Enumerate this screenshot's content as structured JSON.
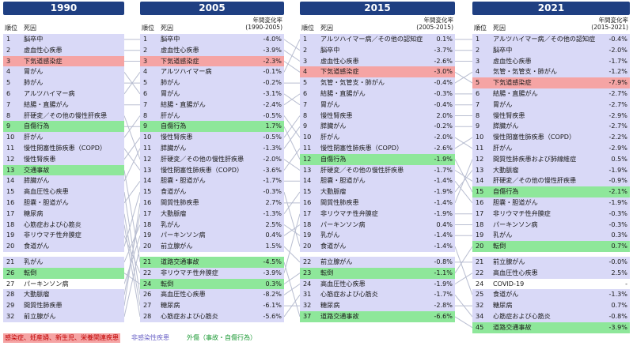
{
  "chart_data": {
    "type": "table",
    "legend": [
      {
        "label": "感染症、妊産婦、新生児、栄養関連疾患",
        "color": "#f5a4a4",
        "text_color": "#c00000"
      },
      {
        "label": "非感染性疾患",
        "color": "#d9d9f7",
        "text_color": "#6b63c7"
      },
      {
        "label": "外傷（事故・自傷行為）",
        "color": "#8ee79a",
        "text_color": "#1c9a35"
      }
    ],
    "columns": [
      {
        "year": "1990",
        "rank_header": "順位",
        "cause_header": "死因",
        "growth_header": "",
        "top": [
          {
            "rank": "1",
            "cause": "脳卒中",
            "growth": "",
            "cat": "nc"
          },
          {
            "rank": "2",
            "cause": "虚血性心疾患",
            "growth": "",
            "cat": "nc"
          },
          {
            "rank": "3",
            "cause": "下気道感染症",
            "growth": "",
            "cat": "inf"
          },
          {
            "rank": "4",
            "cause": "胃がん",
            "growth": "",
            "cat": "nc"
          },
          {
            "rank": "5",
            "cause": "肺がん",
            "growth": "",
            "cat": "nc"
          },
          {
            "rank": "6",
            "cause": "アルツハイマー病",
            "growth": "",
            "cat": "nc"
          },
          {
            "rank": "7",
            "cause": "結腸・直腸がん",
            "growth": "",
            "cat": "nc"
          },
          {
            "rank": "8",
            "cause": "肝硬変／その他の慢性肝疾患",
            "growth": "",
            "cat": "nc"
          },
          {
            "rank": "9",
            "cause": "自傷行為",
            "growth": "",
            "cat": "inj"
          },
          {
            "rank": "10",
            "cause": "肝がん",
            "growth": "",
            "cat": "nc"
          },
          {
            "rank": "11",
            "cause": "慢性閉塞性肺疾患（COPD）",
            "growth": "",
            "cat": "nc"
          },
          {
            "rank": "12",
            "cause": "慢性腎疾患",
            "growth": "",
            "cat": "nc"
          },
          {
            "rank": "13",
            "cause": "交通事故",
            "growth": "",
            "cat": "inj"
          },
          {
            "rank": "14",
            "cause": "膵臓がん",
            "growth": "",
            "cat": "nc"
          },
          {
            "rank": "15",
            "cause": "高血圧性心疾患",
            "growth": "",
            "cat": "nc"
          },
          {
            "rank": "16",
            "cause": "胆嚢・胆道がん",
            "growth": "",
            "cat": "nc"
          },
          {
            "rank": "17",
            "cause": "糖尿病",
            "growth": "",
            "cat": "nc"
          },
          {
            "rank": "18",
            "cause": "心筋症および心筋炎",
            "growth": "",
            "cat": "nc"
          },
          {
            "rank": "19",
            "cause": "非リウマチ性弁膜症",
            "growth": "",
            "cat": "nc"
          },
          {
            "rank": "20",
            "cause": "食道がん",
            "growth": "",
            "cat": "nc"
          }
        ],
        "bottom": [
          {
            "rank": "21",
            "cause": "乳がん",
            "growth": "",
            "cat": "nc"
          },
          {
            "rank": "26",
            "cause": "転倒",
            "growth": "",
            "cat": "inj"
          },
          {
            "rank": "27",
            "cause": "パーキンソン病",
            "growth": "",
            "cat": "other"
          },
          {
            "rank": "28",
            "cause": "大動脈瘤",
            "growth": "",
            "cat": "nc"
          },
          {
            "rank": "29",
            "cause": "間質性肺疾患",
            "growth": "",
            "cat": "nc"
          },
          {
            "rank": "32",
            "cause": "前立腺がん",
            "growth": "",
            "cat": "nc"
          }
        ]
      },
      {
        "year": "2005",
        "rank_header": "順位",
        "cause_header": "死因",
        "growth_header": "年間変化率\n(1990-2005)",
        "top": [
          {
            "rank": "1",
            "cause": "脳卒中",
            "growth": "-4.0%",
            "cat": "nc"
          },
          {
            "rank": "2",
            "cause": "虚血性心疾患",
            "growth": "-3.9%",
            "cat": "nc"
          },
          {
            "rank": "3",
            "cause": "下気道感染症",
            "growth": "-2.3%",
            "cat": "inf"
          },
          {
            "rank": "4",
            "cause": "アルツハイマー病",
            "growth": "-0.1%",
            "cat": "nc"
          },
          {
            "rank": "5",
            "cause": "肺がん",
            "growth": "-0.2%",
            "cat": "nc"
          },
          {
            "rank": "6",
            "cause": "胃がん",
            "growth": "-3.1%",
            "cat": "nc"
          },
          {
            "rank": "7",
            "cause": "結腸・直腸がん",
            "growth": "-2.4%",
            "cat": "nc"
          },
          {
            "rank": "8",
            "cause": "肝がん",
            "growth": "-0.5%",
            "cat": "nc"
          },
          {
            "rank": "9",
            "cause": "自傷行為",
            "growth": "1.7%",
            "cat": "inj"
          },
          {
            "rank": "10",
            "cause": "慢性腎疾患",
            "growth": "-0.5%",
            "cat": "nc"
          },
          {
            "rank": "11",
            "cause": "膵臓がん",
            "growth": "-1.3%",
            "cat": "nc"
          },
          {
            "rank": "12",
            "cause": "肝硬変／その他の慢性肝疾患",
            "growth": "-2.0%",
            "cat": "nc"
          },
          {
            "rank": "13",
            "cause": "慢性閉塞性肺疾患（COPD）",
            "growth": "-3.6%",
            "cat": "nc"
          },
          {
            "rank": "14",
            "cause": "胆嚢・胆道がん",
            "growth": "-1.7%",
            "cat": "nc"
          },
          {
            "rank": "15",
            "cause": "食道がん",
            "growth": "-0.3%",
            "cat": "nc"
          },
          {
            "rank": "16",
            "cause": "間質性肺疾患",
            "growth": "2.7%",
            "cat": "nc"
          },
          {
            "rank": "17",
            "cause": "大動脈瘤",
            "growth": "-1.3%",
            "cat": "nc"
          },
          {
            "rank": "18",
            "cause": "乳がん",
            "growth": "2.5%",
            "cat": "nc"
          },
          {
            "rank": "19",
            "cause": "パーキンソン病",
            "growth": "0.4%",
            "cat": "nc"
          },
          {
            "rank": "20",
            "cause": "前立腺がん",
            "growth": "1.5%",
            "cat": "nc"
          }
        ],
        "bottom": [
          {
            "rank": "21",
            "cause": "道路交通事故",
            "growth": "-4.5%",
            "cat": "inj"
          },
          {
            "rank": "22",
            "cause": "非リウマチ性弁膜症",
            "growth": "-3.9%",
            "cat": "nc"
          },
          {
            "rank": "24",
            "cause": "転倒",
            "growth": "0.3%",
            "cat": "inj"
          },
          {
            "rank": "26",
            "cause": "高血圧性心疾患",
            "growth": "-8.2%",
            "cat": "nc"
          },
          {
            "rank": "27",
            "cause": "糖尿病",
            "growth": "-6.1%",
            "cat": "nc"
          },
          {
            "rank": "28",
            "cause": "心筋症および心筋炎",
            "growth": "-5.6%",
            "cat": "nc"
          }
        ]
      },
      {
        "year": "2015",
        "rank_header": "順位",
        "cause_header": "死因",
        "growth_header": "年間変化率\n(2005-2015)",
        "top": [
          {
            "rank": "1",
            "cause": "アルツハイマー病／その他の認知症",
            "growth": "0.1%",
            "cat": "nc"
          },
          {
            "rank": "2",
            "cause": "脳卒中",
            "growth": "-3.7%",
            "cat": "nc"
          },
          {
            "rank": "3",
            "cause": "虚血性心疾患",
            "growth": "-2.6%",
            "cat": "nc"
          },
          {
            "rank": "4",
            "cause": "下気道感染症",
            "growth": "-3.0%",
            "cat": "inf"
          },
          {
            "rank": "5",
            "cause": "気管・気管支・肺がん",
            "growth": "-0.4%",
            "cat": "nc"
          },
          {
            "rank": "6",
            "cause": "結腸・直腸がん",
            "growth": "-0.3%",
            "cat": "nc"
          },
          {
            "rank": "7",
            "cause": "胃がん",
            "growth": "-0.4%",
            "cat": "nc"
          },
          {
            "rank": "8",
            "cause": "慢性腎疾患",
            "growth": "2.0%",
            "cat": "nc"
          },
          {
            "rank": "9",
            "cause": "膵臓がん",
            "growth": "-0.2%",
            "cat": "nc"
          },
          {
            "rank": "10",
            "cause": "肝がん",
            "growth": "-2.0%",
            "cat": "nc"
          },
          {
            "rank": "11",
            "cause": "慢性閉塞性肺疾患（COPD）",
            "growth": "-2.6%",
            "cat": "nc"
          },
          {
            "rank": "12",
            "cause": "自傷行為",
            "growth": "-1.9%",
            "cat": "inj"
          },
          {
            "rank": "13",
            "cause": "肝硬変／その他の慢性肝疾患",
            "growth": "-1.7%",
            "cat": "nc"
          },
          {
            "rank": "14",
            "cause": "胆嚢・胆道がん",
            "growth": "-1.4%",
            "cat": "nc"
          },
          {
            "rank": "15",
            "cause": "大動脈瘤",
            "growth": "-1.9%",
            "cat": "nc"
          },
          {
            "rank": "16",
            "cause": "間質性肺疾患",
            "growth": "-1.4%",
            "cat": "nc"
          },
          {
            "rank": "17",
            "cause": "非リウマチ性弁膜症",
            "growth": "-1.9%",
            "cat": "nc"
          },
          {
            "rank": "18",
            "cause": "パーキンソン病",
            "growth": "0.4%",
            "cat": "nc"
          },
          {
            "rank": "19",
            "cause": "乳がん",
            "growth": "-1.4%",
            "cat": "nc"
          },
          {
            "rank": "20",
            "cause": "食道がん",
            "growth": "-1.4%",
            "cat": "nc"
          }
        ],
        "bottom": [
          {
            "rank": "22",
            "cause": "前立腺がん",
            "growth": "-0.8%",
            "cat": "nc"
          },
          {
            "rank": "23",
            "cause": "転倒",
            "growth": "-1.1%",
            "cat": "inj"
          },
          {
            "rank": "24",
            "cause": "高血圧性心疾患",
            "growth": "-1.9%",
            "cat": "nc"
          },
          {
            "rank": "31",
            "cause": "心筋症および心筋炎",
            "growth": "-1.7%",
            "cat": "nc"
          },
          {
            "rank": "32",
            "cause": "糖尿病",
            "growth": "-2.8%",
            "cat": "nc"
          },
          {
            "rank": "37",
            "cause": "道路交通事故",
            "growth": "-6.6%",
            "cat": "inj"
          }
        ]
      },
      {
        "year": "2021",
        "rank_header": "順位",
        "cause_header": "死因",
        "growth_header": "年間変化率\n(2015-2021)",
        "top": [
          {
            "rank": "1",
            "cause": "アルツハイマー病／その他の認知症",
            "growth": "-0.4%",
            "cat": "nc"
          },
          {
            "rank": "2",
            "cause": "脳卒中",
            "growth": "-2.0%",
            "cat": "nc"
          },
          {
            "rank": "3",
            "cause": "虚血性心疾患",
            "growth": "-1.7%",
            "cat": "nc"
          },
          {
            "rank": "4",
            "cause": "気管・気管支・肺がん",
            "growth": "-1.2%",
            "cat": "nc"
          },
          {
            "rank": "5",
            "cause": "下気道感染症",
            "growth": "-7.9%",
            "cat": "inf"
          },
          {
            "rank": "6",
            "cause": "結腸・直腸がん",
            "growth": "-2.7%",
            "cat": "nc"
          },
          {
            "rank": "7",
            "cause": "胃がん",
            "growth": "-2.7%",
            "cat": "nc"
          },
          {
            "rank": "8",
            "cause": "慢性腎疾患",
            "growth": "-2.9%",
            "cat": "nc"
          },
          {
            "rank": "9",
            "cause": "膵臓がん",
            "growth": "-2.7%",
            "cat": "nc"
          },
          {
            "rank": "10",
            "cause": "慢性閉塞性肺疾患（COPD）",
            "growth": "-2.2%",
            "cat": "nc"
          },
          {
            "rank": "11",
            "cause": "肝がん",
            "growth": "-2.9%",
            "cat": "nc"
          },
          {
            "rank": "12",
            "cause": "間質性肺疾患および肺線維症",
            "growth": "0.5%",
            "cat": "nc"
          },
          {
            "rank": "13",
            "cause": "大動脈瘤",
            "growth": "-1.9%",
            "cat": "nc"
          },
          {
            "rank": "14",
            "cause": "肝硬変／その他の慢性肝疾患",
            "growth": "-0.9%",
            "cat": "nc"
          },
          {
            "rank": "15",
            "cause": "自傷行為",
            "growth": "-2.1%",
            "cat": "inj"
          },
          {
            "rank": "16",
            "cause": "胆嚢・胆道がん",
            "growth": "-1.9%",
            "cat": "nc"
          },
          {
            "rank": "17",
            "cause": "非リウマチ性弁膜症",
            "growth": "-0.3%",
            "cat": "nc"
          },
          {
            "rank": "18",
            "cause": "パーキンソン病",
            "growth": "-0.3%",
            "cat": "nc"
          },
          {
            "rank": "19",
            "cause": "乳がん",
            "growth": "0.3%",
            "cat": "nc"
          },
          {
            "rank": "20",
            "cause": "転倒",
            "growth": "0.7%",
            "cat": "inj"
          }
        ],
        "bottom": [
          {
            "rank": "21",
            "cause": "前立腺がん",
            "growth": "-0.0%",
            "cat": "nc"
          },
          {
            "rank": "22",
            "cause": "高血圧性心疾患",
            "growth": "2.5%",
            "cat": "nc"
          },
          {
            "rank": "24",
            "cause": "COVID-19",
            "growth": "-",
            "cat": "other"
          },
          {
            "rank": "25",
            "cause": "食道がん",
            "growth": "-1.3%",
            "cat": "nc"
          },
          {
            "rank": "32",
            "cause": "糖尿病",
            "growth": "0.7%",
            "cat": "nc"
          },
          {
            "rank": "34",
            "cause": "心筋症および心筋炎",
            "growth": "-0.8%",
            "cat": "nc"
          },
          {
            "rank": "45",
            "cause": "道路交通事故",
            "growth": "-3.9%",
            "cat": "inj"
          }
        ]
      }
    ]
  }
}
